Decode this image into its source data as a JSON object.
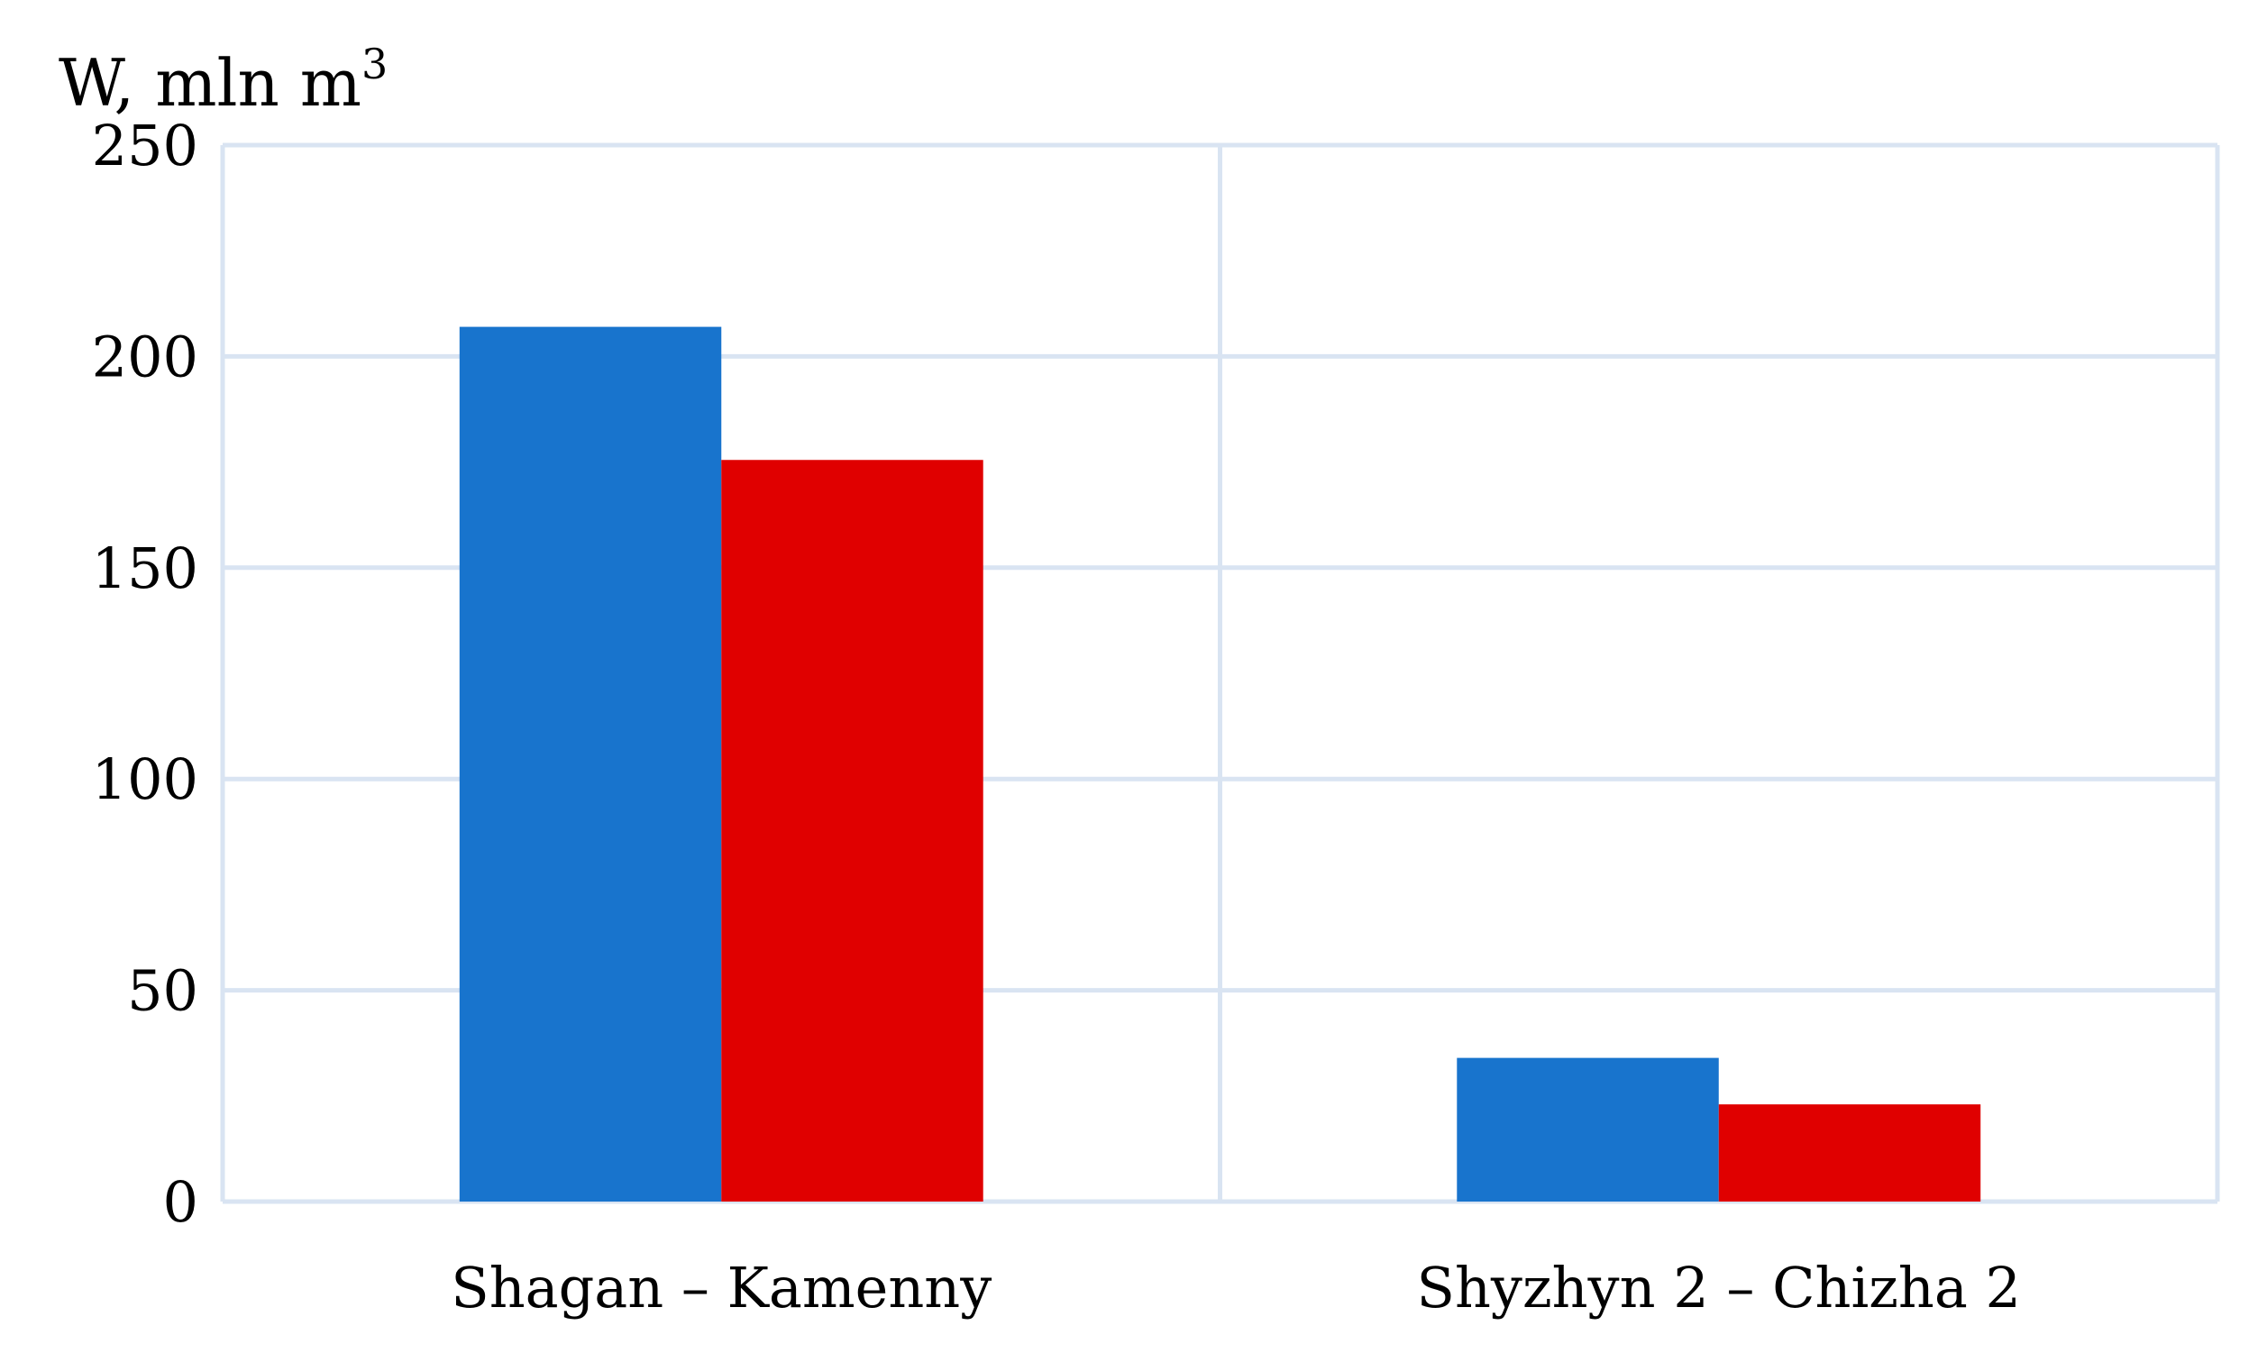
{
  "chart_data": {
    "type": "bar",
    "ylabel": "W, mln m",
    "ylabel_superscript": "3",
    "ylim": [
      0,
      250
    ],
    "yticks": [
      "0",
      "50",
      "100",
      "150",
      "200",
      "250"
    ],
    "categories": [
      "Shagan – Kamenny",
      "Shyzhyn 2 – Chizha 2"
    ],
    "series": [
      {
        "values": [
          207,
          34
        ],
        "color": "#1874CD"
      },
      {
        "values": [
          175.5,
          23
        ],
        "color": "#E00000"
      }
    ],
    "grid": true,
    "legend": "none",
    "colors": {
      "grid": "#D9E4F2",
      "text": "#000000"
    }
  }
}
